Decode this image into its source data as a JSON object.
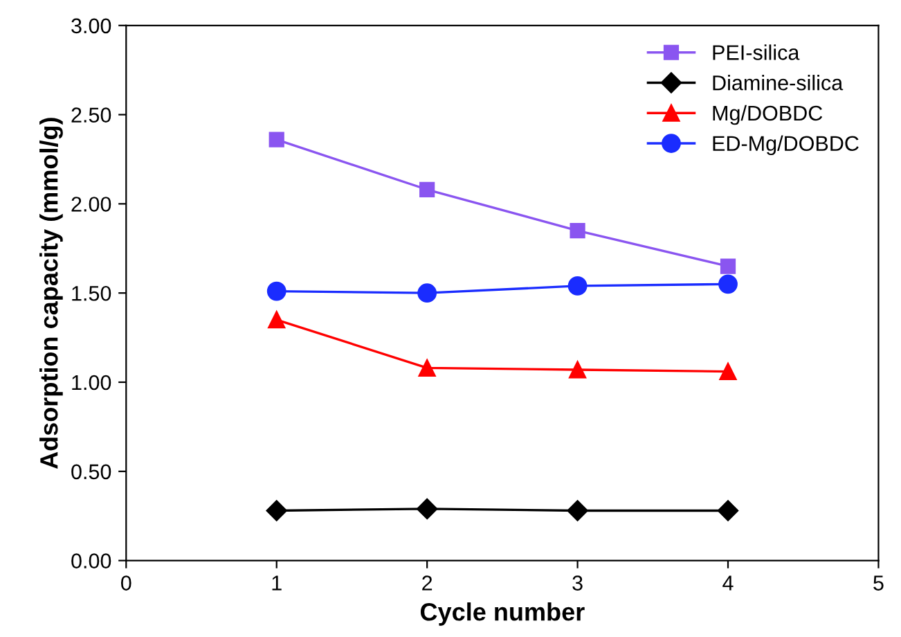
{
  "chart_data": {
    "type": "line",
    "xlabel": "Cycle number",
    "ylabel": "Adsorption capacity (mmol/g)",
    "x": [
      1,
      2,
      3,
      4
    ],
    "series": [
      {
        "name": "PEI-silica",
        "color": "#8a55f0",
        "marker": "square",
        "values": [
          2.36,
          2.08,
          1.85,
          1.65
        ]
      },
      {
        "name": "Diamine-silica",
        "color": "#000000",
        "marker": "diamond",
        "values": [
          0.28,
          0.29,
          0.28,
          0.28
        ]
      },
      {
        "name": "Mg/DOBDC",
        "color": "#ff0000",
        "marker": "triangle",
        "values": [
          1.35,
          1.08,
          1.07,
          1.06
        ]
      },
      {
        "name": "ED-Mg/DOBDC",
        "color": "#1a2cff",
        "marker": "circle",
        "values": [
          1.51,
          1.5,
          1.54,
          1.55
        ]
      }
    ],
    "xlim": [
      0,
      5
    ],
    "xticks": [
      0,
      1,
      2,
      3,
      4,
      5
    ],
    "ylim": [
      0,
      3
    ],
    "yticks": [
      {
        "value": 0,
        "label": "0.00"
      },
      {
        "value": 0.5,
        "label": "0.50"
      },
      {
        "value": 1,
        "label": "1.00"
      },
      {
        "value": 1.5,
        "label": "1.50"
      },
      {
        "value": 2,
        "label": "2.00"
      },
      {
        "value": 2.5,
        "label": "2.50"
      },
      {
        "value": 3,
        "label": "3.00"
      }
    ],
    "grid": false,
    "legend": "top right",
    "line_style": "solid"
  }
}
